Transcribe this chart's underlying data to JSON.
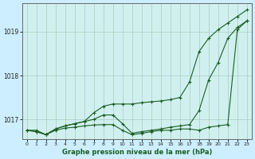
{
  "title": "Graphe pression niveau de la mer (hPa)",
  "background_color": "#cceeff",
  "plot_bg_color": "#d0f0f0",
  "grid_color": "#aaccbb",
  "line_color": "#1a5e20",
  "xlim": [
    -0.5,
    23.5
  ],
  "ylim": [
    1016.55,
    1019.65
  ],
  "yticks": [
    1017,
    1018,
    1019
  ],
  "xticks": [
    0,
    1,
    2,
    3,
    4,
    5,
    6,
    7,
    8,
    9,
    10,
    11,
    12,
    13,
    14,
    15,
    16,
    17,
    18,
    19,
    20,
    21,
    22,
    23
  ],
  "series": [
    [
      1016.75,
      1016.75,
      1016.65,
      1016.75,
      1016.8,
      1016.82,
      1016.85,
      1016.87,
      1016.88,
      1016.88,
      1016.75,
      1016.65,
      1016.68,
      1016.72,
      1016.75,
      1016.75,
      1016.78,
      1016.78,
      1016.75,
      1016.82,
      1016.85,
      1016.88,
      1019.05,
      1019.25
    ],
    [
      1016.75,
      1016.72,
      1016.65,
      1016.78,
      1016.85,
      1016.9,
      1016.95,
      1017.0,
      1017.1,
      1017.1,
      1016.9,
      1016.68,
      1016.72,
      1016.75,
      1016.78,
      1016.82,
      1016.85,
      1016.88,
      1017.2,
      1017.9,
      1018.3,
      1018.85,
      1019.1,
      1019.25
    ],
    [
      1016.75,
      1016.72,
      1016.65,
      1016.78,
      1016.85,
      1016.9,
      1016.95,
      1017.15,
      1017.3,
      1017.35,
      1017.35,
      1017.35,
      1017.38,
      1017.4,
      1017.42,
      1017.45,
      1017.5,
      1017.85,
      1018.55,
      1018.85,
      1019.05,
      1019.2,
      1019.35,
      1019.5
    ]
  ]
}
